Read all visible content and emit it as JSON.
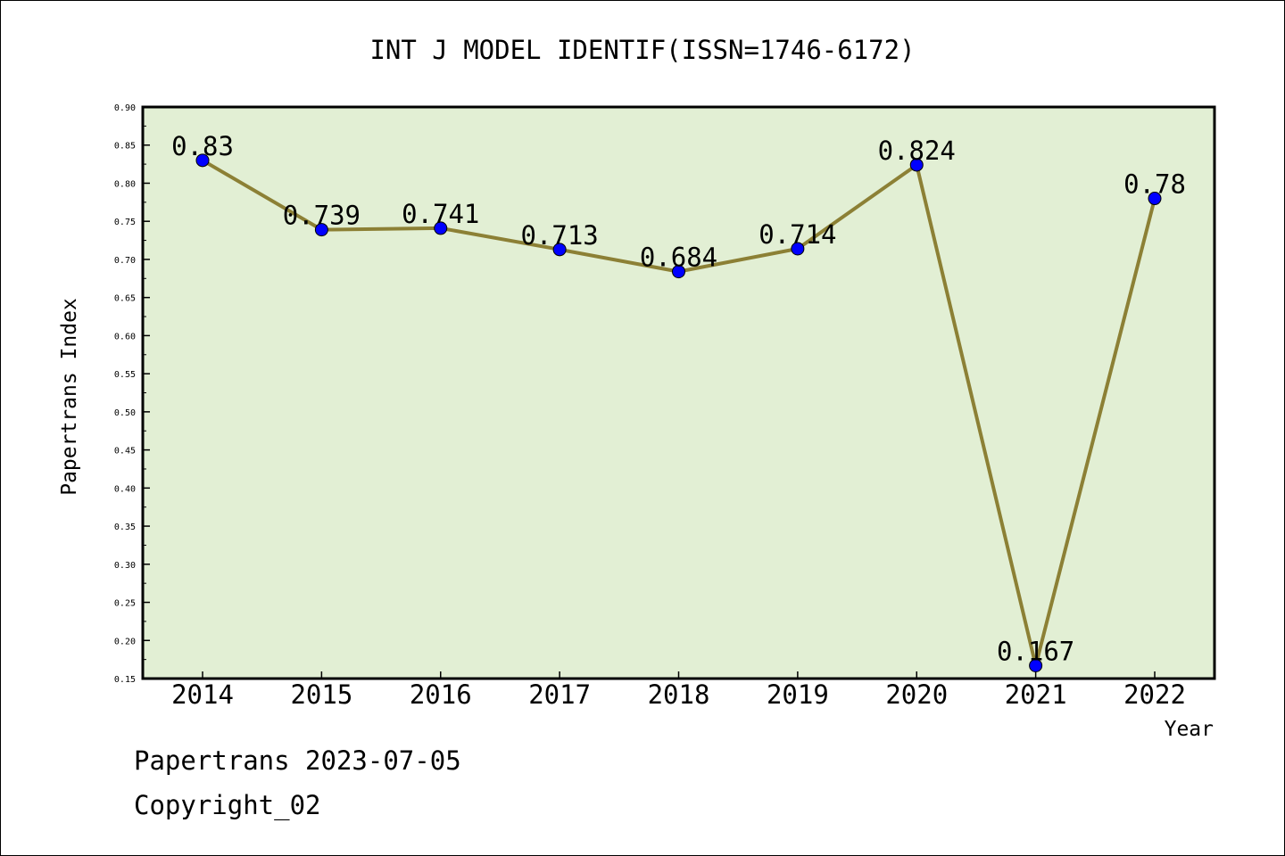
{
  "chart_data": {
    "type": "line",
    "title": "INT J MODEL IDENTIF(ISSN=1746-6172)",
    "xlabel": "Year",
    "ylabel": "Papertrans Index",
    "categories": [
      "2014",
      "2015",
      "2016",
      "2017",
      "2018",
      "2019",
      "2020",
      "2021",
      "2022"
    ],
    "values": [
      0.83,
      0.739,
      0.741,
      0.713,
      0.684,
      0.714,
      0.824,
      0.167,
      0.78
    ],
    "data_labels": [
      "0.83",
      "0.739",
      "0.741",
      "0.713",
      "0.684",
      "0.714",
      "0.824",
      "0.167",
      "0.78"
    ],
    "ylim": [
      0.15,
      0.9
    ],
    "yticks": [
      "0.15",
      "0.20",
      "0.25",
      "0.30",
      "0.35",
      "0.40",
      "0.45",
      "0.50",
      "0.55",
      "0.60",
      "0.65",
      "0.70",
      "0.75",
      "0.80",
      "0.85",
      "0.90"
    ],
    "grid": false,
    "legend": "none",
    "colors": {
      "plot_background": "#e2efd4",
      "line": "#8c8035",
      "marker": "#0000ff"
    }
  },
  "footer": {
    "line1": "Papertrans 2023-07-05",
    "line2": "Copyright_02"
  }
}
